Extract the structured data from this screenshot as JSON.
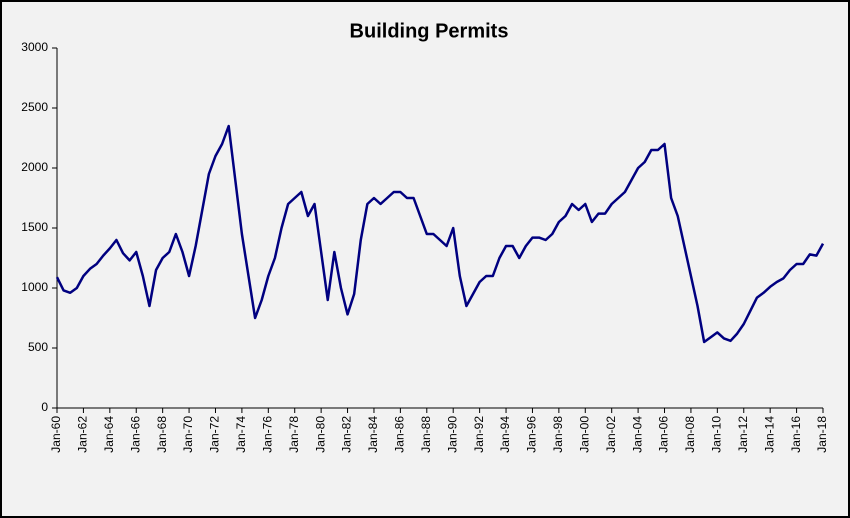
{
  "chart_data": {
    "type": "line",
    "title": "Building Permits",
    "categories": [
      "Jan-60",
      null,
      null,
      null,
      "Jan-62",
      null,
      null,
      null,
      "Jan-64",
      null,
      null,
      null,
      "Jan-66",
      null,
      null,
      null,
      "Jan-68",
      null,
      null,
      null,
      "Jan-70",
      null,
      null,
      null,
      "Jan-72",
      null,
      null,
      null,
      "Jan-74",
      null,
      null,
      null,
      "Jan-76",
      null,
      null,
      null,
      "Jan-78",
      null,
      null,
      null,
      "Jan-80",
      null,
      null,
      null,
      "Jan-82",
      null,
      null,
      null,
      "Jan-84",
      null,
      null,
      null,
      "Jan-86",
      null,
      null,
      null,
      "Jan-88",
      null,
      null,
      null,
      "Jan-90",
      null,
      null,
      null,
      "Jan-92",
      null,
      null,
      null,
      "Jan-94",
      null,
      null,
      null,
      "Jan-96",
      null,
      null,
      null,
      "Jan-98",
      null,
      null,
      null,
      "Jan-00",
      null,
      null,
      null,
      "Jan-02",
      null,
      null,
      null,
      "Jan-04",
      null,
      null,
      null,
      "Jan-06",
      null,
      null,
      null,
      "Jan-08",
      null,
      null,
      null,
      "Jan-10",
      null,
      null,
      null,
      "Jan-12",
      null,
      null,
      null,
      "Jan-14",
      null,
      null,
      null,
      "Jan-16",
      null,
      null,
      null,
      "Jan-18"
    ],
    "values": [
      1090,
      980,
      960,
      1000,
      1100,
      1160,
      1200,
      1270,
      1330,
      1400,
      1290,
      1230,
      1300,
      1100,
      850,
      1150,
      1250,
      1300,
      1450,
      1300,
      1100,
      1350,
      1650,
      1950,
      2100,
      2200,
      2350,
      1900,
      1450,
      1100,
      750,
      900,
      1100,
      1250,
      1500,
      1700,
      1750,
      1800,
      1600,
      1700,
      1300,
      900,
      1300,
      1000,
      780,
      950,
      1400,
      1700,
      1750,
      1700,
      1750,
      1800,
      1800,
      1750,
      1750,
      1600,
      1450,
      1450,
      1400,
      1350,
      1500,
      1100,
      850,
      950,
      1050,
      1100,
      1100,
      1250,
      1350,
      1350,
      1250,
      1350,
      1420,
      1420,
      1400,
      1450,
      1550,
      1600,
      1700,
      1650,
      1700,
      1550,
      1620,
      1620,
      1700,
      1750,
      1800,
      1900,
      2000,
      2050,
      2150,
      2150,
      2200,
      1750,
      1600,
      1350,
      1100,
      850,
      550,
      590,
      630,
      580,
      560,
      620,
      700,
      810,
      920,
      960,
      1010,
      1050,
      1080,
      1150,
      1200,
      1200,
      1280,
      1270,
      1370
    ],
    "color": "#000080",
    "ylim": [
      0,
      3000
    ],
    "yticks": [
      0,
      500,
      1000,
      1500,
      2000,
      2500,
      3000
    ]
  }
}
